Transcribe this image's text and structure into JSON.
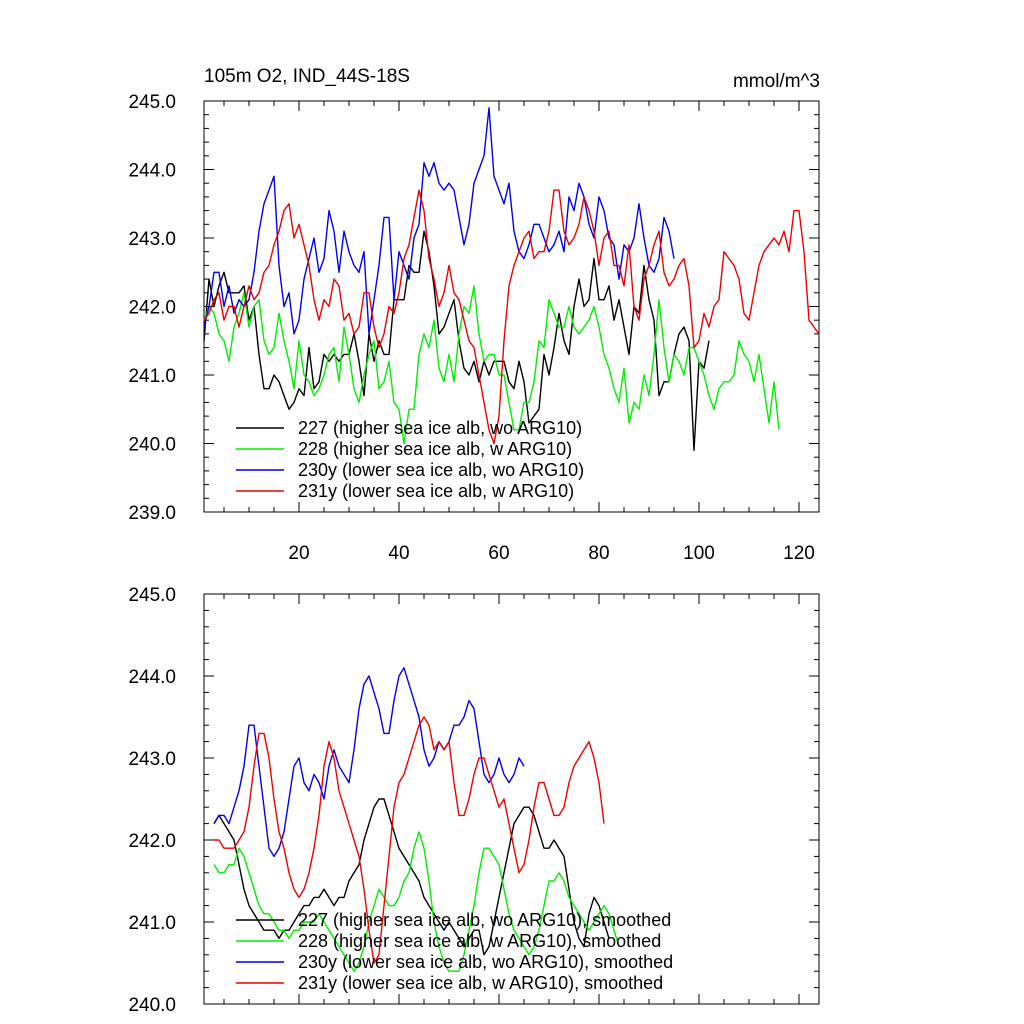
{
  "chart_data": [
    {
      "type": "line",
      "title": "105m O2, IND_44S-18S",
      "units": "mmol/m^3",
      "xlim": [
        1,
        124
      ],
      "ylim": [
        239.0,
        245.0
      ],
      "x_ticks": [
        20,
        40,
        60,
        80,
        100,
        120
      ],
      "x_tick_labels": [
        "20",
        "40",
        "60",
        "80",
        "100",
        "120"
      ],
      "y_ticks": [
        239.0,
        240.0,
        241.0,
        242.0,
        243.0,
        244.0,
        245.0
      ],
      "y_tick_labels": [
        "239.0",
        "240.0",
        "241.0",
        "242.0",
        "243.0",
        "244.0",
        "245.0"
      ],
      "grid": false,
      "legend_position": "bottom-left",
      "series": [
        {
          "name": "227 (higher sea ice alb, wo ARG10)",
          "color": "#000000",
          "x_start": 1,
          "values": [
            241.5,
            242.4,
            242.0,
            242.3,
            242.5,
            242.2,
            242.2,
            242.2,
            242.3,
            241.8,
            242.0,
            241.3,
            240.8,
            240.8,
            241.0,
            240.9,
            240.7,
            240.5,
            240.6,
            240.8,
            240.7,
            241.4,
            240.8,
            240.9,
            241.3,
            241.2,
            241.3,
            241.2,
            241.3,
            241.3,
            241.6,
            241.2,
            240.7,
            241.6,
            241.2,
            241.5,
            241.3,
            241.3,
            242.1,
            242.1,
            242.1,
            242.6,
            242.5,
            242.5,
            243.1,
            242.8,
            242.3,
            241.6,
            241.7,
            241.9,
            242.1,
            241.5,
            241.1,
            241.0,
            241.2,
            240.9,
            241.2,
            241.0,
            241.2,
            241.2,
            241.2,
            240.9,
            240.8,
            241.2,
            240.9,
            240.3,
            240.4,
            240.5,
            241.3,
            241.0,
            241.4,
            241.9,
            241.5,
            241.3,
            242.0,
            242.4,
            242.0,
            242.1,
            242.7,
            242.1,
            242.1,
            242.3,
            241.8,
            242.1,
            241.7,
            241.3,
            242.0,
            241.9,
            242.6,
            242.1,
            241.8,
            240.7,
            240.9,
            240.9,
            241.3,
            241.6,
            241.7,
            241.5,
            239.9,
            241.2,
            241.1,
            241.5
          ]
        },
        {
          "name": "228 (higher sea ice alb, w ARG10)",
          "color": "#00ee00",
          "x_start": 1,
          "values": [
            241.8,
            242.0,
            241.9,
            241.6,
            241.5,
            241.2,
            241.7,
            241.9,
            242.2,
            241.7,
            242.0,
            242.1,
            241.5,
            241.3,
            241.4,
            241.9,
            241.5,
            241.2,
            240.8,
            241.5,
            241.0,
            240.9,
            240.7,
            240.8,
            241.0,
            241.3,
            241.4,
            240.9,
            241.7,
            241.3,
            240.8,
            240.6,
            241.0,
            241.3,
            241.5,
            240.8,
            240.9,
            241.2,
            240.6,
            240.5,
            240.0,
            240.5,
            240.5,
            241.3,
            241.6,
            241.4,
            241.8,
            241.1,
            240.9,
            241.3,
            240.9,
            241.6,
            242.0,
            241.9,
            242.3,
            241.6,
            241.2,
            241.3,
            241.3,
            241.0,
            241.0,
            240.6,
            240.2,
            240.2,
            240.6,
            240.6,
            240.9,
            241.5,
            241.4,
            242.1,
            241.9,
            241.7,
            241.7,
            242.0,
            241.7,
            241.6,
            241.7,
            241.8,
            242.0,
            241.7,
            241.3,
            241.1,
            240.8,
            240.6,
            241.1,
            240.3,
            240.6,
            240.5,
            241.0,
            240.7,
            241.3,
            242.1,
            241.4,
            240.9,
            241.3,
            241.2,
            241.0,
            241.4,
            241.4,
            241.2,
            241.0,
            240.7,
            240.5,
            240.8,
            240.9,
            240.9,
            241.0,
            241.5,
            241.3,
            241.2,
            240.9,
            241.3,
            240.8,
            240.3,
            240.9,
            240.2
          ]
        },
        {
          "name": "230y (lower sea ice alb, wo ARG10)",
          "color": "#0000ee",
          "x_start": 1,
          "values": [
            241.7,
            242.0,
            242.5,
            242.5,
            242.0,
            242.3,
            241.9,
            242.1,
            242.0,
            242.1,
            242.5,
            243.1,
            243.5,
            243.7,
            243.9,
            242.6,
            242.0,
            242.2,
            241.6,
            241.8,
            242.4,
            242.7,
            243.0,
            242.5,
            242.7,
            243.4,
            243.1,
            242.5,
            243.1,
            242.8,
            242.6,
            242.5,
            242.8,
            241.6,
            242.1,
            242.6,
            243.3,
            243.3,
            242.1,
            242.8,
            242.6,
            242.4,
            243.0,
            243.2,
            244.1,
            243.9,
            244.1,
            243.8,
            243.7,
            243.8,
            243.7,
            243.3,
            242.9,
            243.2,
            243.8,
            244.0,
            244.2,
            244.9,
            243.9,
            243.7,
            243.5,
            243.8,
            243.1,
            242.8,
            242.7,
            242.9,
            243.2,
            243.2,
            243.0,
            242.8,
            242.9,
            243.1,
            242.8,
            243.6,
            243.4,
            243.8,
            243.6,
            243.2,
            243.0,
            243.6,
            243.4,
            243.0,
            242.9,
            242.4,
            242.9,
            242.8,
            243.0,
            243.5,
            243.0,
            242.6,
            242.5,
            242.7,
            243.3,
            243.1,
            242.7
          ]
        },
        {
          "name": "231y (lower sea ice alb, w ARG10)",
          "color": "#ee0000",
          "x_start": 1,
          "values": [
            241.8,
            241.9,
            242.1,
            242.2,
            241.8,
            242.0,
            242.0,
            241.7,
            242.0,
            242.3,
            242.1,
            242.2,
            242.5,
            242.6,
            242.9,
            243.1,
            243.4,
            243.5,
            243.0,
            243.2,
            242.9,
            242.6,
            242.1,
            241.8,
            242.1,
            242.0,
            242.4,
            242.3,
            241.8,
            241.9,
            241.6,
            241.7,
            242.2,
            242.2,
            241.7,
            241.4,
            241.6,
            242.0,
            241.9,
            242.2,
            242.7,
            242.9,
            243.3,
            243.7,
            243.4,
            242.7,
            242.4,
            242.0,
            242.2,
            242.6,
            242.2,
            242.1,
            241.8,
            241.5,
            241.4,
            241.0,
            240.6,
            240.2,
            240.0,
            240.4,
            241.5,
            242.3,
            242.6,
            242.8,
            243.0,
            243.1,
            242.7,
            242.8,
            242.8,
            243.1,
            243.7,
            243.7,
            243.1,
            242.9,
            243.0,
            243.2,
            243.6,
            243.4,
            243.1,
            242.6,
            243.0,
            243.1,
            242.6,
            242.6,
            242.3,
            242.9,
            242.0,
            241.8,
            242.4,
            242.6,
            242.9,
            243.1,
            242.5,
            242.3,
            242.4,
            242.6,
            242.7,
            242.3,
            241.4,
            241.5,
            241.9,
            241.7,
            242.0,
            242.1,
            242.8,
            242.7,
            242.6,
            242.4,
            241.9,
            241.8,
            242.2,
            242.6,
            242.8,
            242.9,
            243.0,
            242.9,
            243.1,
            242.8,
            243.4,
            243.4,
            242.8,
            241.8,
            241.7,
            241.6
          ]
        }
      ]
    },
    {
      "type": "line",
      "xlim": [
        1,
        124
      ],
      "ylim": [
        240.0,
        245.0
      ],
      "y_ticks": [
        240.0,
        241.0,
        242.0,
        243.0,
        244.0,
        245.0
      ],
      "y_tick_labels": [
        "240.0",
        "241.0",
        "242.0",
        "243.0",
        "244.0",
        "245.0"
      ],
      "grid": false,
      "legend_position": "bottom-left",
      "series": [
        {
          "name": "227 (higher sea ice alb, wo ARG10), smoothed",
          "color": "#000000",
          "x_start": 3,
          "values": [
            242.2,
            242.3,
            242.2,
            242.1,
            242.0,
            241.7,
            241.4,
            241.2,
            241.1,
            241.0,
            240.9,
            240.9,
            240.9,
            240.8,
            240.9,
            240.9,
            241.0,
            241.1,
            241.2,
            241.2,
            241.3,
            241.3,
            241.4,
            241.3,
            241.2,
            241.3,
            241.3,
            241.5,
            241.6,
            241.7,
            242.0,
            242.2,
            242.4,
            242.5,
            242.5,
            242.3,
            242.1,
            241.9,
            241.8,
            241.7,
            241.6,
            241.5,
            241.3,
            241.2,
            241.1,
            241.0,
            240.9,
            241.0,
            240.9,
            240.8,
            240.7,
            240.8,
            240.9,
            240.9,
            240.6,
            240.7,
            241.0,
            241.3,
            241.6,
            241.9,
            242.2,
            242.3,
            242.4,
            242.4,
            242.3,
            242.1,
            241.9,
            241.9,
            242.0,
            241.9,
            241.8,
            241.4,
            241.0,
            240.8,
            240.7,
            241.1,
            241.3,
            241.2,
            241.0,
            240.8
          ]
        },
        {
          "name": "228 (higher sea ice alb, w ARG10), smoothed",
          "color": "#00ee00",
          "x_start": 3,
          "values": [
            241.7,
            241.6,
            241.6,
            241.7,
            241.7,
            241.9,
            241.8,
            241.6,
            241.4,
            241.2,
            241.1,
            241.1,
            241.0,
            240.9,
            240.9,
            240.8,
            240.9,
            240.9,
            241.0,
            241.0,
            241.0,
            241.1,
            241.0,
            240.9,
            240.8,
            240.7,
            240.6,
            240.5,
            240.4,
            240.5,
            240.7,
            241.0,
            241.2,
            241.4,
            241.3,
            241.2,
            241.2,
            241.3,
            241.5,
            241.6,
            241.9,
            242.1,
            241.9,
            241.5,
            241.0,
            240.7,
            240.5,
            240.4,
            240.4,
            240.4,
            240.6,
            240.9,
            241.2,
            241.6,
            241.9,
            241.9,
            241.8,
            241.7,
            241.4,
            241.1,
            240.9,
            240.8,
            240.7,
            240.6,
            240.7,
            240.9,
            241.2,
            241.5,
            241.5,
            241.6,
            241.5,
            241.3,
            241.2,
            241.1,
            241.0,
            240.9,
            241.0,
            241.1,
            241.2,
            241.1,
            240.9,
            240.7
          ]
        },
        {
          "name": "230y (lower sea ice alb, wo ARG10), smoothed",
          "color": "#0000ee",
          "x_start": 3,
          "values": [
            242.2,
            242.3,
            242.3,
            242.2,
            242.4,
            242.6,
            242.9,
            243.4,
            243.4,
            242.9,
            242.4,
            241.9,
            241.8,
            241.9,
            242.1,
            242.5,
            242.9,
            243.0,
            242.7,
            242.6,
            242.8,
            242.7,
            242.5,
            242.9,
            243.1,
            242.9,
            242.8,
            242.7,
            243.1,
            243.6,
            243.9,
            244.0,
            243.8,
            243.6,
            243.3,
            243.3,
            243.7,
            244.0,
            244.1,
            243.9,
            243.7,
            243.5,
            243.1,
            242.9,
            243.0,
            243.2,
            243.1,
            243.2,
            243.4,
            243.4,
            243.5,
            243.7,
            243.6,
            243.2,
            242.8,
            242.7,
            242.8,
            243.0,
            242.8,
            242.7,
            242.8,
            243.0,
            242.9
          ]
        },
        {
          "name": "231y (lower sea ice alb, w ARG10), smoothed",
          "color": "#ee0000",
          "x_start": 3,
          "values": [
            242.0,
            242.0,
            241.9,
            241.9,
            241.9,
            242.0,
            242.1,
            242.4,
            242.9,
            243.3,
            243.3,
            243.0,
            242.5,
            242.1,
            241.9,
            241.6,
            241.4,
            241.3,
            241.4,
            241.6,
            241.9,
            242.3,
            242.9,
            243.2,
            243.0,
            242.6,
            242.4,
            242.2,
            242.0,
            241.8,
            241.4,
            240.9,
            240.5,
            240.6,
            241.2,
            241.8,
            242.4,
            242.7,
            242.8,
            243.0,
            243.2,
            243.4,
            243.5,
            243.4,
            243.1,
            243.2,
            243.1,
            243.2,
            242.7,
            242.3,
            242.3,
            242.5,
            242.8,
            243.0,
            243.0,
            242.8,
            242.6,
            242.4,
            242.5,
            242.2,
            241.9,
            241.6,
            241.7,
            242.0,
            242.4,
            242.7,
            242.7,
            242.5,
            242.3,
            242.3,
            242.4,
            242.7,
            242.9,
            243.0,
            243.1,
            243.2,
            243.0,
            242.7,
            242.2
          ]
        }
      ]
    }
  ]
}
